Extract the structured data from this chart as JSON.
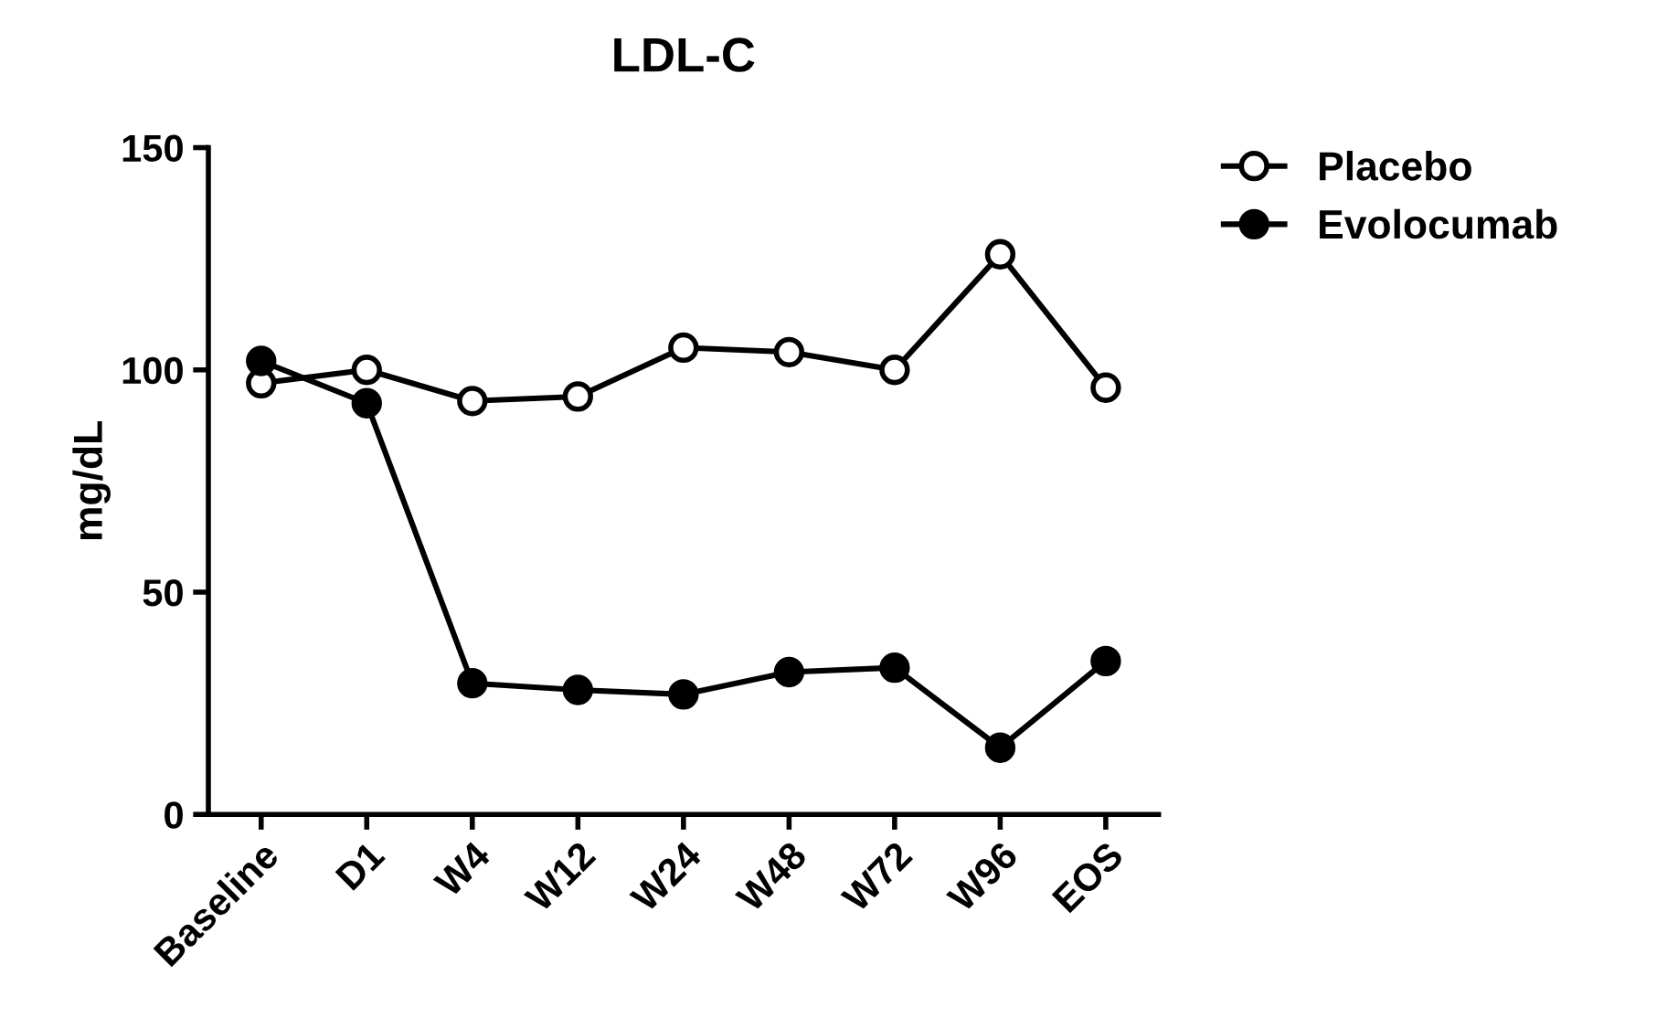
{
  "chart_data": {
    "type": "line",
    "title": "LDL-C",
    "ylabel": "mg/dL",
    "categories": [
      "Baseline",
      "D1",
      "W4",
      "W12",
      "W24",
      "W48",
      "W72",
      "W96",
      "EOS"
    ],
    "series": [
      {
        "name": "Placebo",
        "color": "#000000",
        "marker": "open circle",
        "values": [
          97,
          100,
          93,
          94,
          105,
          104,
          100,
          126,
          96
        ]
      },
      {
        "name": "Evolocumab",
        "color": "#000000",
        "marker": "circle",
        "values": [
          102,
          92.5,
          29.5,
          28,
          27,
          32,
          33,
          15,
          34.5
        ]
      }
    ],
    "ylim": [
      0,
      150
    ],
    "yticks": [
      0,
      50,
      100,
      150
    ],
    "grid": false,
    "legend": "top right",
    "line_style": "solid"
  }
}
